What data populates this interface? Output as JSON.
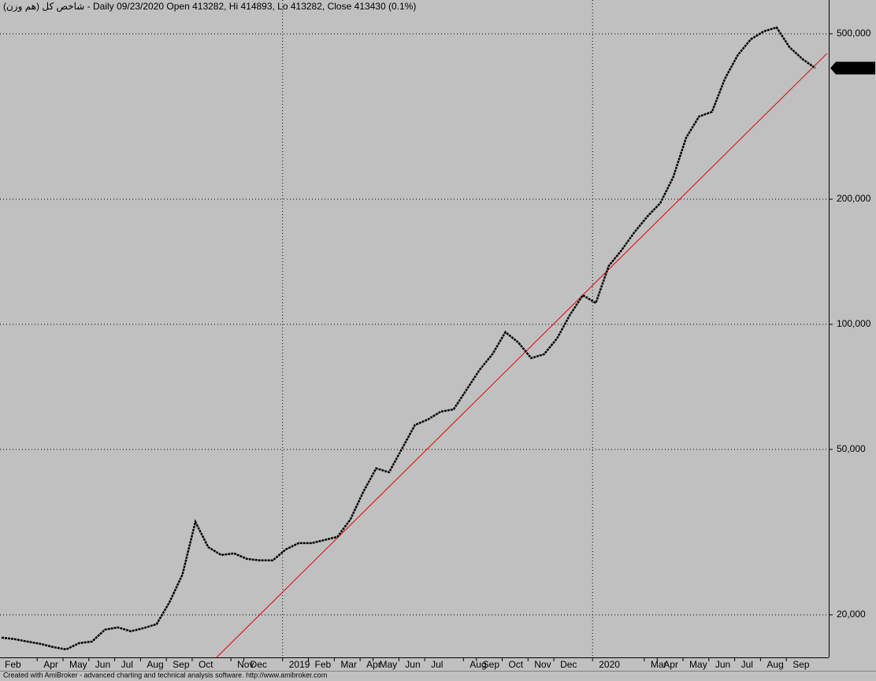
{
  "chart_data": {
    "type": "line",
    "title": "شاخص كل (هم وزن) - Daily 09/23/2020 Open 413282, Hi 414893, Lo 413282, Close 413430 (0.1%)",
    "footer": "Created with AmiBroker - advanced charting and technical analysis software. http://www.amibroker.com",
    "log_scale": true,
    "grid": true,
    "categories": [
      "Feb",
      null,
      null,
      "Apr",
      null,
      "May",
      null,
      "Jun",
      null,
      "Jul",
      null,
      "Aug",
      null,
      "Sep",
      null,
      "Oct",
      null,
      null,
      "Nov",
      "Dec",
      null,
      null,
      "2019",
      null,
      "Feb",
      null,
      "Mar",
      null,
      "Apr",
      "May",
      null,
      "Jun",
      null,
      "Jul",
      null,
      null,
      "Aug",
      "Sep",
      null,
      "Oct",
      null,
      "Nov",
      null,
      "Dec",
      null,
      null,
      "2020",
      null,
      null,
      null,
      "Mar",
      "Apr",
      null,
      "May",
      null,
      "Jun",
      null,
      "Jul",
      null,
      "Aug",
      null,
      "Sep",
      null,
      null
    ],
    "series": [
      {
        "color": "#000000",
        "values": [
          17630,
          17480,
          17250,
          17030,
          16730,
          16510,
          17100,
          17250,
          18420,
          18660,
          18260,
          18580,
          18990,
          21460,
          25000,
          33470,
          29110,
          27870,
          28110,
          27270,
          27040,
          27040,
          28730,
          29750,
          29750,
          30270,
          30810,
          33910,
          39500,
          45030,
          44060,
          50220,
          57230,
          59020,
          61640,
          62450,
          69640,
          77650,
          84740,
          95740,
          90460,
          82910,
          84740,
          92460,
          105400,
          117500,
          112500,
          138100,
          150800,
          166600,
          181800,
          195800,
          226000,
          281200,
          316200,
          324600,
          389900,
          444500,
          484900,
          506600,
          517800,
          464300,
          434800,
          413430
        ],
        "value_labels": [
          null,
          null,
          null,
          null,
          null,
          null,
          null,
          null,
          null,
          null,
          null,
          null,
          null,
          null,
          null,
          null,
          null,
          null,
          null,
          null,
          null,
          null,
          null,
          null,
          null,
          null,
          null,
          null,
          null,
          null,
          null,
          null,
          null,
          null,
          null,
          null,
          null,
          null,
          null,
          null,
          null,
          null,
          null,
          null,
          null,
          null,
          null,
          null,
          null,
          null,
          null,
          null,
          null,
          null,
          null,
          null,
          null,
          null,
          null,
          null,
          null,
          null,
          null,
          "413,430"
        ]
      }
    ],
    "trendline": {
      "color": "#e00000",
      "x": [
        16.65,
        63.9
      ],
      "values": [
        15800,
        448400
      ]
    },
    "ylim": [
      15800,
      603000
    ],
    "yticks": [
      {
        "value": 20000,
        "label": "20,000"
      },
      {
        "value": 50000,
        "label": "50,000"
      },
      {
        "value": 100000,
        "label": "100,000"
      },
      {
        "value": 200000,
        "label": "200,000"
      },
      {
        "value": 500000,
        "label": "500,000"
      }
    ]
  }
}
